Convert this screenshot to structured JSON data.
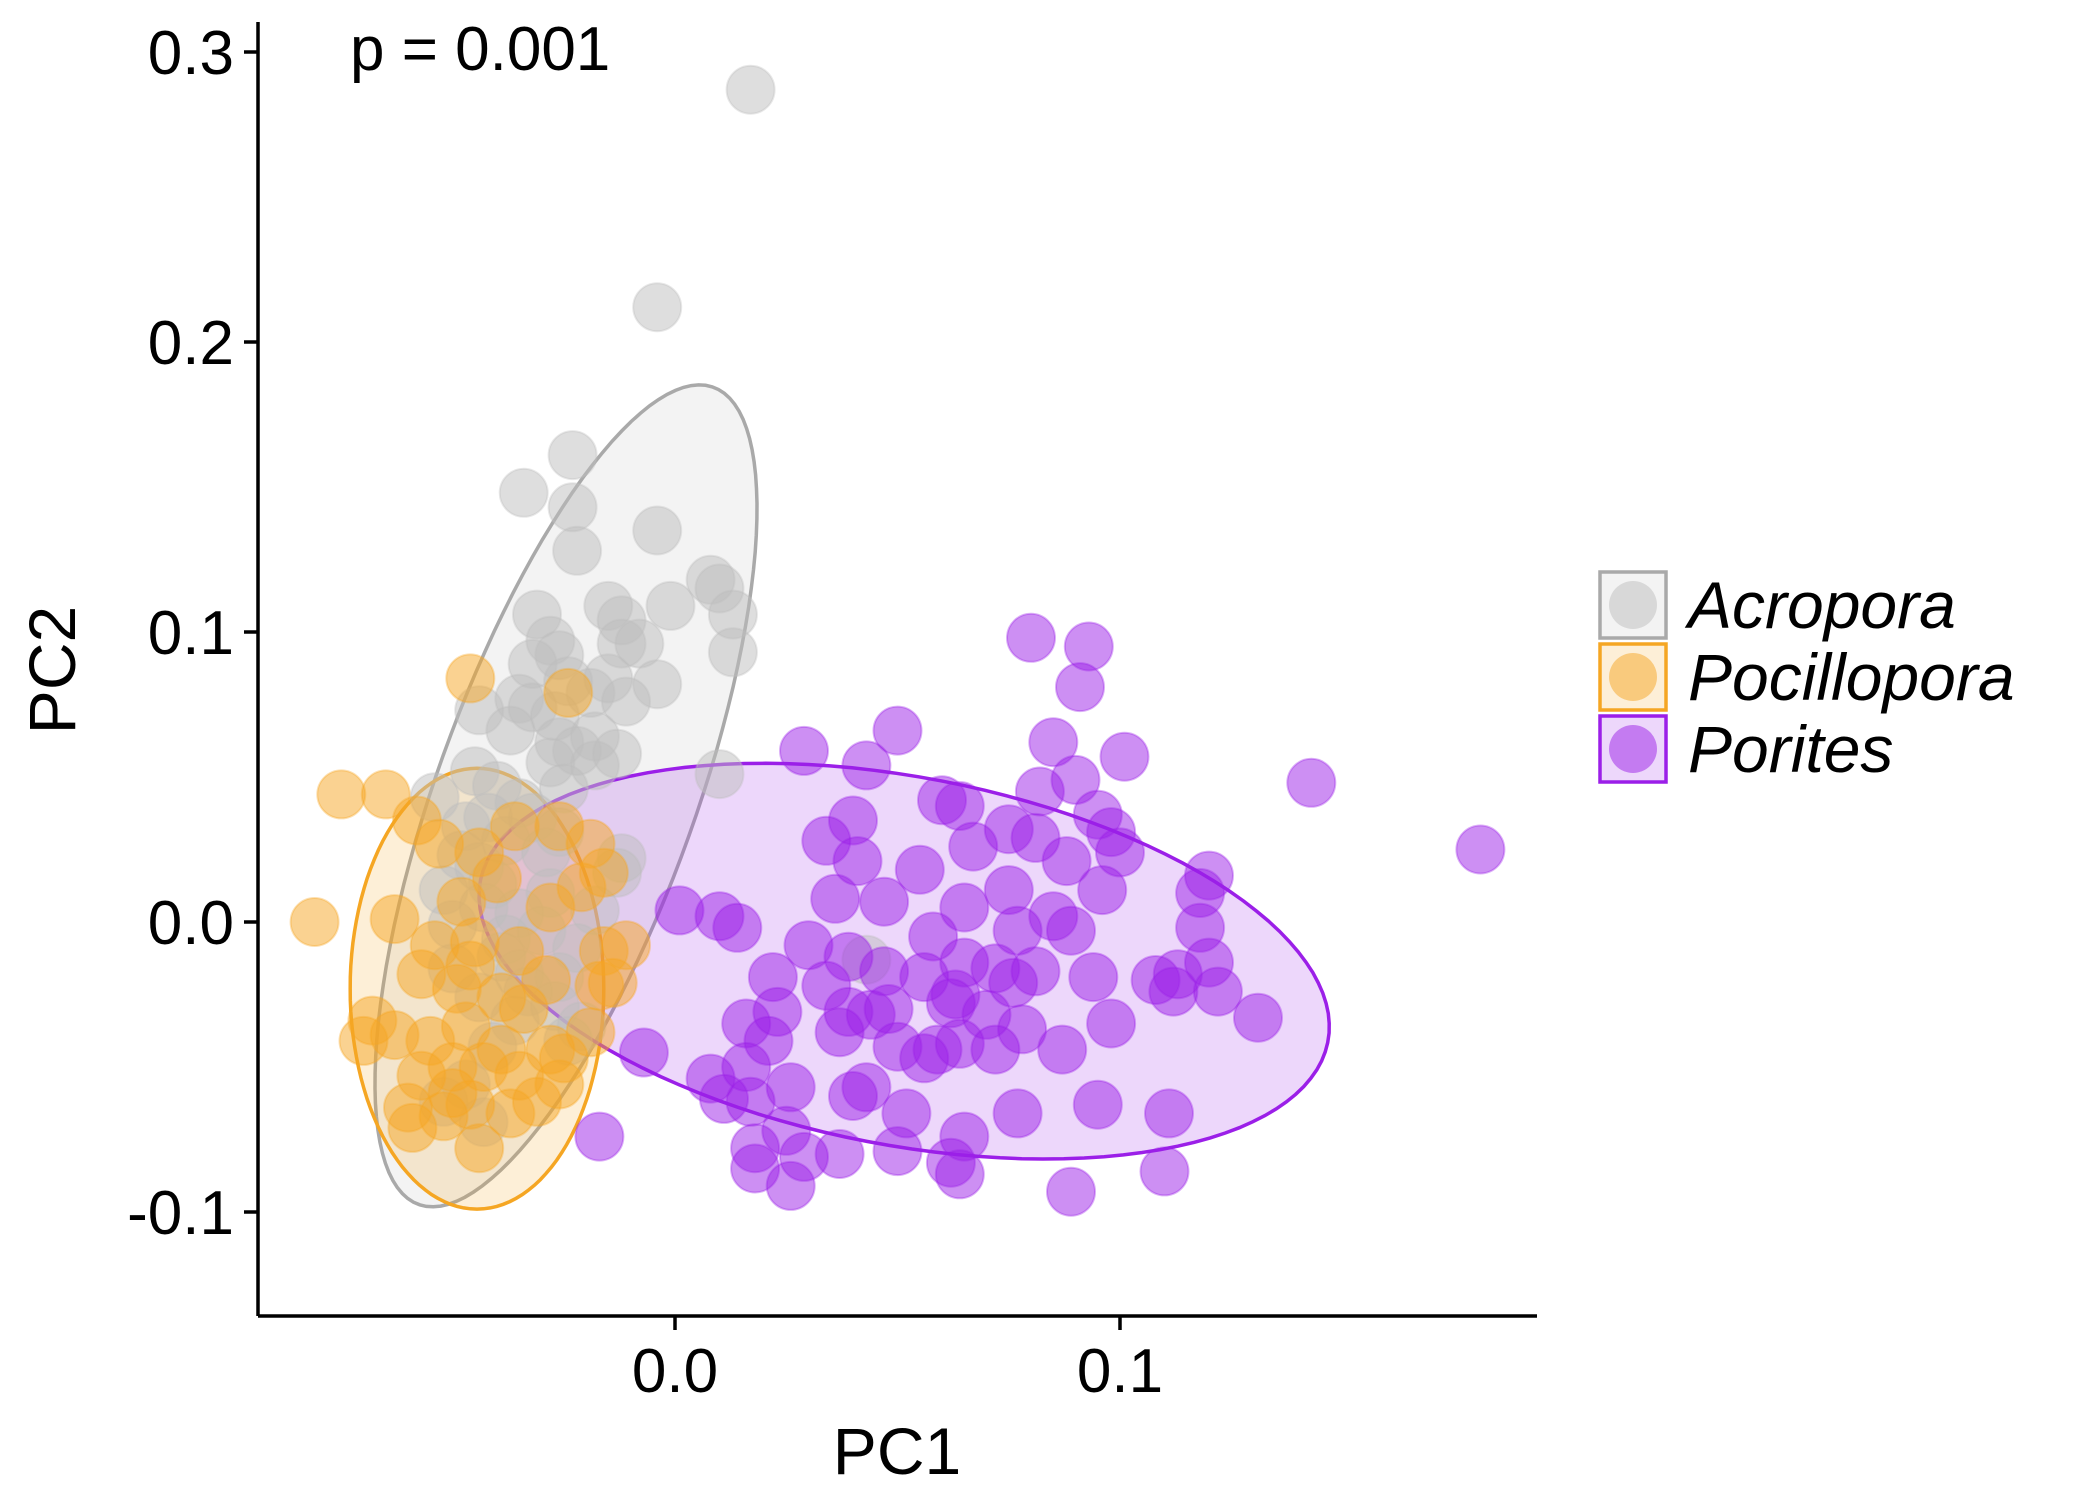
{
  "chart_data": {
    "type": "scatter",
    "title": "",
    "xlabel": "PC1",
    "ylabel": "PC2",
    "xlim": [
      -0.095,
      0.19
    ],
    "ylim": [
      -0.135,
      0.305
    ],
    "x_ticks": [
      "0.0",
      "0.1"
    ],
    "x_tick_values": [
      0.0,
      0.1
    ],
    "y_ticks": [
      "-0.1",
      "0.0",
      "0.1",
      "0.2",
      "0.3"
    ],
    "y_tick_values": [
      -0.1,
      0.0,
      0.1,
      0.2,
      0.3
    ],
    "grid": false,
    "legend_position": "right",
    "annotation": "p = 0.001",
    "series": [
      {
        "name": "Acropora",
        "color": "#a9a9a9",
        "fill": "#bdbdbd",
        "ellipse": {
          "cx": -0.0245,
          "cy": 0.0435,
          "rx": 0.145,
          "ry": 0.03,
          "angle_deg": 77.5
        },
        "points": [
          [
            0.017,
            0.287
          ],
          [
            -0.004,
            0.212
          ],
          [
            -0.023,
            0.161
          ],
          [
            -0.034,
            0.148
          ],
          [
            -0.023,
            0.143
          ],
          [
            -0.004,
            0.135
          ],
          [
            -0.022,
            0.128
          ],
          [
            0.008,
            0.118
          ],
          [
            0.01,
            0.115
          ],
          [
            0.013,
            0.106
          ],
          [
            -0.015,
            0.109
          ],
          [
            -0.001,
            0.109
          ],
          [
            -0.031,
            0.106
          ],
          [
            -0.012,
            0.104
          ],
          [
            -0.012,
            0.096
          ],
          [
            -0.008,
            0.096
          ],
          [
            -0.028,
            0.097
          ],
          [
            -0.026,
            0.092
          ],
          [
            0.013,
            0.093
          ],
          [
            -0.032,
            0.089
          ],
          [
            -0.024,
            0.083
          ],
          [
            -0.004,
            0.082
          ],
          [
            -0.015,
            0.084
          ],
          [
            -0.019,
            0.079
          ],
          [
            -0.011,
            0.076
          ],
          [
            -0.035,
            0.077
          ],
          [
            -0.044,
            0.073
          ],
          [
            -0.032,
            0.074
          ],
          [
            -0.027,
            0.071
          ],
          [
            -0.037,
            0.066
          ],
          [
            -0.026,
            0.062
          ],
          [
            -0.022,
            0.059
          ],
          [
            -0.018,
            0.064
          ],
          [
            -0.028,
            0.055
          ],
          [
            -0.018,
            0.054
          ],
          [
            -0.013,
            0.058
          ],
          [
            -0.045,
            0.052
          ],
          [
            -0.04,
            0.047
          ],
          [
            -0.054,
            0.043
          ],
          [
            -0.035,
            0.041
          ],
          [
            -0.025,
            0.046
          ],
          [
            -0.032,
            0.036
          ],
          [
            -0.042,
            0.036
          ],
          [
            -0.047,
            0.033
          ],
          [
            -0.038,
            0.028
          ],
          [
            -0.026,
            0.031
          ],
          [
            -0.029,
            0.024
          ],
          [
            -0.048,
            0.023
          ],
          [
            -0.044,
            0.019
          ],
          [
            -0.041,
            0.013
          ],
          [
            -0.012,
            0.022
          ],
          [
            -0.013,
            0.017
          ],
          [
            -0.052,
            0.011
          ],
          [
            -0.028,
            0.01
          ],
          [
            -0.043,
            0.005
          ],
          [
            -0.035,
            0.003
          ],
          [
            -0.05,
            -0.001
          ],
          [
            -0.038,
            -0.006
          ],
          [
            -0.018,
            0.004
          ],
          [
            -0.03,
            -0.003
          ],
          [
            -0.022,
            -0.009
          ],
          [
            -0.039,
            -0.012
          ],
          [
            -0.05,
            -0.016
          ],
          [
            -0.035,
            -0.018
          ],
          [
            -0.026,
            -0.019
          ],
          [
            -0.033,
            -0.024
          ],
          [
            -0.044,
            -0.026
          ],
          [
            -0.036,
            -0.034
          ],
          [
            -0.027,
            -0.029
          ],
          [
            -0.021,
            -0.036
          ],
          [
            -0.041,
            -0.043
          ],
          [
            -0.047,
            -0.056
          ],
          [
            -0.052,
            -0.062
          ],
          [
            -0.043,
            -0.069
          ],
          [
            0.01,
            0.051
          ],
          [
            0.043,
            -0.013
          ],
          [
            -0.024,
            -0.041
          ]
        ]
      },
      {
        "name": "Pocillopora",
        "color": "#f5a623",
        "fill": "#f5a623",
        "ellipse": {
          "cx": -0.0445,
          "cy": -0.023,
          "rx": 0.076,
          "ry": 0.0285,
          "angle_deg": 90
        },
        "points": [
          [
            -0.046,
            0.084
          ],
          [
            -0.075,
            0.044
          ],
          [
            -0.065,
            0.044
          ],
          [
            -0.081,
            0.0
          ],
          [
            -0.063,
            0.001
          ],
          [
            -0.024,
            0.079
          ],
          [
            -0.058,
            0.035
          ],
          [
            -0.053,
            0.027
          ],
          [
            -0.044,
            0.024
          ],
          [
            -0.036,
            0.033
          ],
          [
            -0.026,
            0.033
          ],
          [
            -0.019,
            0.027
          ],
          [
            -0.016,
            0.017
          ],
          [
            -0.021,
            0.012
          ],
          [
            -0.048,
            0.007
          ],
          [
            -0.028,
            0.005
          ],
          [
            -0.04,
            0.015
          ],
          [
            -0.054,
            -0.008
          ],
          [
            -0.045,
            -0.007
          ],
          [
            -0.035,
            -0.01
          ],
          [
            -0.016,
            -0.01
          ],
          [
            -0.011,
            -0.008
          ],
          [
            -0.057,
            -0.018
          ],
          [
            -0.049,
            -0.023
          ],
          [
            -0.039,
            -0.026
          ],
          [
            -0.029,
            -0.02
          ],
          [
            -0.017,
            -0.022
          ],
          [
            -0.068,
            -0.034
          ],
          [
            -0.07,
            -0.041
          ],
          [
            -0.063,
            -0.039
          ],
          [
            -0.055,
            -0.041
          ],
          [
            -0.047,
            -0.036
          ],
          [
            -0.039,
            -0.044
          ],
          [
            -0.028,
            -0.044
          ],
          [
            -0.019,
            -0.038
          ],
          [
            -0.057,
            -0.053
          ],
          [
            -0.05,
            -0.05
          ],
          [
            -0.043,
            -0.05
          ],
          [
            -0.035,
            -0.053
          ],
          [
            -0.026,
            -0.056
          ],
          [
            -0.06,
            -0.064
          ],
          [
            -0.052,
            -0.067
          ],
          [
            -0.046,
            -0.063
          ],
          [
            -0.037,
            -0.066
          ],
          [
            -0.044,
            -0.078
          ],
          [
            -0.059,
            -0.071
          ],
          [
            -0.031,
            -0.062
          ],
          [
            -0.025,
            -0.047
          ],
          [
            -0.014,
            -0.021
          ],
          [
            -0.046,
            -0.015
          ],
          [
            -0.034,
            -0.03
          ],
          [
            -0.05,
            -0.059
          ]
        ]
      },
      {
        "name": "Porites",
        "color": "#9b1fe8",
        "fill": "#9b1fe8",
        "ellipse": {
          "cx": 0.0515,
          "cy": -0.0135,
          "rx": 0.1,
          "ry": 0.0615,
          "angle_deg": -22
        },
        "points": [
          [
            0.08,
            0.098
          ],
          [
            0.093,
            0.095
          ],
          [
            0.091,
            0.081
          ],
          [
            0.085,
            0.062
          ],
          [
            0.101,
            0.057
          ],
          [
            0.143,
            0.048
          ],
          [
            0.181,
            0.025
          ],
          [
            0.029,
            0.059
          ],
          [
            0.05,
            0.066
          ],
          [
            0.043,
            0.054
          ],
          [
            0.06,
            0.042
          ],
          [
            0.064,
            0.04
          ],
          [
            0.082,
            0.045
          ],
          [
            0.09,
            0.049
          ],
          [
            0.04,
            0.035
          ],
          [
            0.095,
            0.037
          ],
          [
            0.034,
            0.028
          ],
          [
            0.067,
            0.026
          ],
          [
            0.075,
            0.032
          ],
          [
            0.081,
            0.029
          ],
          [
            0.098,
            0.031
          ],
          [
            0.041,
            0.021
          ],
          [
            0.055,
            0.018
          ],
          [
            0.088,
            0.021
          ],
          [
            0.1,
            0.024
          ],
          [
            0.12,
            0.016
          ],
          [
            0.118,
            0.01
          ],
          [
            0.036,
            0.008
          ],
          [
            0.047,
            0.007
          ],
          [
            0.065,
            0.005
          ],
          [
            0.075,
            0.011
          ],
          [
            0.085,
            0.002
          ],
          [
            0.096,
            0.011
          ],
          [
            0.001,
            0.004
          ],
          [
            0.01,
            0.002
          ],
          [
            0.014,
            -0.002
          ],
          [
            0.03,
            -0.008
          ],
          [
            0.039,
            -0.012
          ],
          [
            0.058,
            -0.005
          ],
          [
            0.077,
            -0.003
          ],
          [
            0.089,
            -0.003
          ],
          [
            0.118,
            -0.002
          ],
          [
            0.047,
            -0.017
          ],
          [
            0.065,
            -0.014
          ],
          [
            0.072,
            -0.016
          ],
          [
            0.094,
            -0.019
          ],
          [
            0.108,
            -0.02
          ],
          [
            0.12,
            -0.014
          ],
          [
            0.022,
            -0.019
          ],
          [
            0.034,
            -0.022
          ],
          [
            0.056,
            -0.019
          ],
          [
            0.076,
            -0.021
          ],
          [
            0.081,
            -0.017
          ],
          [
            0.112,
            -0.024
          ],
          [
            0.122,
            -0.024
          ],
          [
            0.016,
            -0.035
          ],
          [
            0.023,
            -0.031
          ],
          [
            0.039,
            -0.031
          ],
          [
            0.044,
            -0.032
          ],
          [
            0.062,
            -0.028
          ],
          [
            0.07,
            -0.032
          ],
          [
            0.078,
            -0.037
          ],
          [
            0.098,
            -0.035
          ],
          [
            0.131,
            -0.033
          ],
          [
            -0.007,
            -0.045
          ],
          [
            0.021,
            -0.041
          ],
          [
            0.037,
            -0.038
          ],
          [
            0.05,
            -0.043
          ],
          [
            0.059,
            -0.044
          ],
          [
            0.064,
            -0.042
          ],
          [
            0.072,
            -0.044
          ],
          [
            0.008,
            -0.054
          ],
          [
            0.016,
            -0.05
          ],
          [
            0.026,
            -0.057
          ],
          [
            0.043,
            -0.057
          ],
          [
            0.056,
            -0.047
          ],
          [
            0.087,
            -0.044
          ],
          [
            0.011,
            -0.061
          ],
          [
            0.017,
            -0.062
          ],
          [
            0.04,
            -0.06
          ],
          [
            0.052,
            -0.066
          ],
          [
            0.077,
            -0.066
          ],
          [
            0.095,
            -0.063
          ],
          [
            0.111,
            -0.066
          ],
          [
            0.018,
            -0.078
          ],
          [
            0.025,
            -0.072
          ],
          [
            0.037,
            -0.08
          ],
          [
            0.05,
            -0.079
          ],
          [
            0.065,
            -0.074
          ],
          [
            0.062,
            -0.083
          ],
          [
            0.018,
            -0.085
          ],
          [
            0.026,
            -0.091
          ],
          [
            0.029,
            -0.081
          ],
          [
            0.064,
            -0.087
          ],
          [
            0.11,
            -0.086
          ],
          [
            0.089,
            -0.093
          ],
          [
            -0.017,
            -0.074
          ],
          [
            0.048,
            -0.03
          ],
          [
            0.113,
            -0.018
          ],
          [
            0.063,
            -0.025
          ]
        ]
      }
    ]
  }
}
